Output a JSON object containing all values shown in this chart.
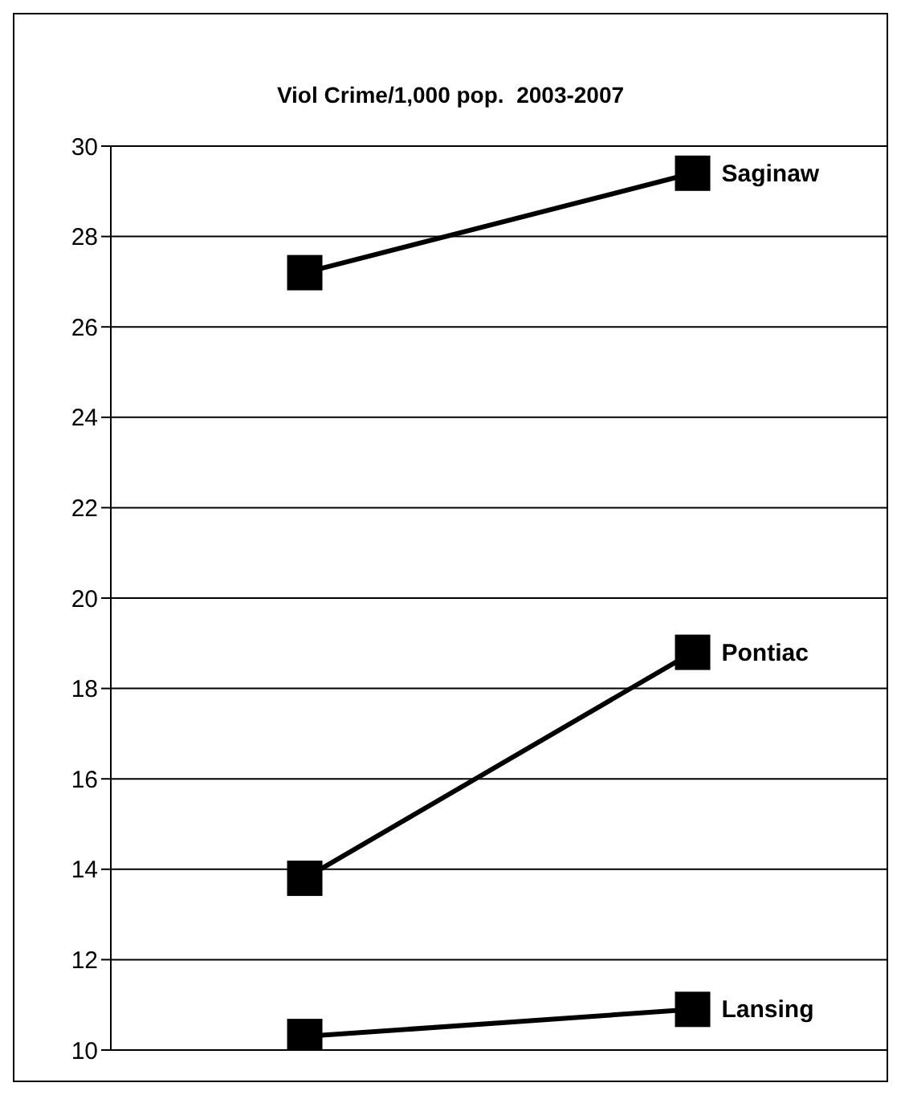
{
  "chart_data": {
    "type": "line",
    "title": "Viol Crime/1,000 pop.  2003-2007",
    "categories": [
      null,
      null
    ],
    "series": [
      {
        "name": "Saginaw",
        "color": "#000000",
        "values": [
          27.2,
          29.4
        ]
      },
      {
        "name": "Pontiac",
        "color": "#000000",
        "values": [
          13.8,
          18.8
        ]
      },
      {
        "name": "Lansing",
        "color": "#000000",
        "values": [
          10.3,
          10.9
        ]
      }
    ],
    "ylim": [
      10,
      30
    ],
    "yticks": [
      10,
      12,
      14,
      16,
      18,
      20,
      22,
      24,
      26,
      28,
      30
    ],
    "grid": "y",
    "marker": "square",
    "line_style": "solid",
    "tick_labels": "y"
  }
}
